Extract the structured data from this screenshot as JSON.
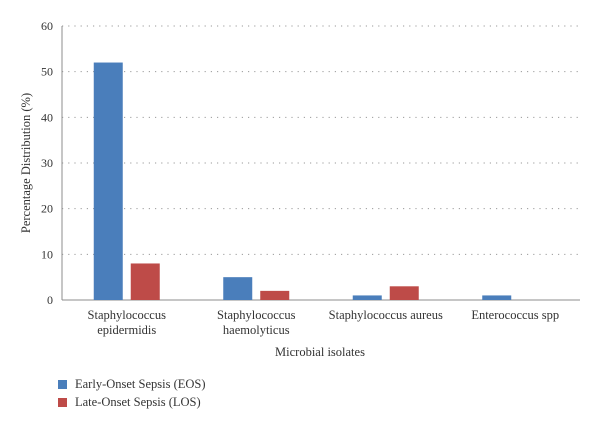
{
  "chart_data": {
    "type": "bar",
    "categories": [
      [
        "Staphylococcus",
        "epidermidis"
      ],
      [
        "Staphylococcus",
        "haemolyticus"
      ],
      [
        "Staphylococcus aureus"
      ],
      [
        "Enterococcus spp"
      ]
    ],
    "series": [
      {
        "name": "Early-Onset Sepsis (EOS)",
        "color": "#4a7ebb",
        "values": [
          52,
          5,
          1,
          1
        ]
      },
      {
        "name": "Late-Onset Sepsis (LOS)",
        "color": "#be4b48",
        "values": [
          8,
          2,
          3,
          0
        ]
      }
    ],
    "xlabel": "Microbial isolates",
    "ylabel": "Percentage Distribution (%)",
    "ylim": [
      0,
      60
    ],
    "yticks": [
      0,
      10,
      20,
      30,
      40,
      50,
      60
    ],
    "grid": true,
    "legend_position": "bottom-left"
  }
}
